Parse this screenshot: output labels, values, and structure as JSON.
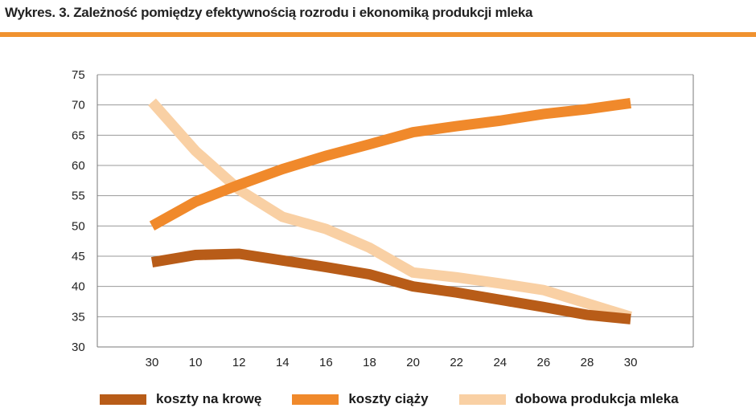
{
  "header": {
    "title": "Wykres. 3. Zależność pomiędzy efektywnością rozrodu i ekonomiką produkcji mleka"
  },
  "colors": {
    "accent_rule": "#f0922f",
    "grid": "#9a9a9a",
    "axis": "#7a7a7a"
  },
  "chart_data": {
    "type": "line",
    "title": "Wykres. 3. Zależność pomiędzy efektywnością rozrodu i ekonomiką produkcji mleka",
    "xlabel": "",
    "ylabel": "",
    "categories": [
      "30",
      "10",
      "12",
      "14",
      "16",
      "18",
      "20",
      "22",
      "24",
      "26",
      "28",
      "30"
    ],
    "ylim": [
      30,
      75
    ],
    "yticks": [
      30,
      35,
      40,
      45,
      50,
      55,
      60,
      65,
      70,
      75
    ],
    "grid": true,
    "legend_position": "bottom",
    "series": [
      {
        "name": "koszty na krowę",
        "color": "#b85c18",
        "values": [
          44,
          45.2,
          45.4,
          44.3,
          43.2,
          42,
          40,
          39,
          37.8,
          36.6,
          35.3,
          34.6
        ]
      },
      {
        "name": "koszty ciąży",
        "color": "#f0892b",
        "values": [
          50,
          54,
          56.8,
          59.4,
          61.6,
          63.5,
          65.5,
          66.5,
          67.4,
          68.5,
          69.3,
          70.3
        ]
      },
      {
        "name": "dobowa produkcja mleka",
        "color": "#f9d0a4",
        "values": [
          70.5,
          62.4,
          56,
          51.5,
          49.5,
          46.4,
          42.3,
          41.5,
          40.5,
          39.4,
          37.2,
          35
        ]
      }
    ]
  }
}
